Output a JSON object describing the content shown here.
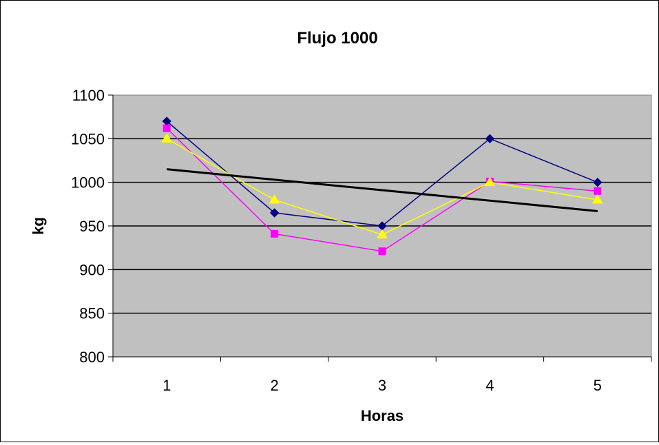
{
  "chart_data": {
    "type": "line",
    "title": "Flujo 1000",
    "xlabel": "Horas",
    "ylabel": "kg",
    "categories": [
      "1",
      "2",
      "3",
      "4",
      "5"
    ],
    "ylim": [
      800,
      1100
    ],
    "yticks": [
      800,
      850,
      900,
      950,
      1000,
      1050,
      1100
    ],
    "grid": true,
    "legend": "none",
    "plot_background": "#C0C0C0",
    "series": [
      {
        "color": "#000080",
        "marker": "diamond",
        "values": [
          1070,
          965,
          950,
          1050,
          1000
        ]
      },
      {
        "color": "#FF00FF",
        "marker": "square",
        "values": [
          1062,
          941,
          921,
          1001,
          990
        ]
      },
      {
        "color": "#FFFF00",
        "marker": "triangle",
        "values": [
          1050,
          980,
          940,
          1000,
          980
        ]
      }
    ],
    "trendline": {
      "color": "#000000",
      "values": [
        1015,
        967
      ]
    }
  }
}
